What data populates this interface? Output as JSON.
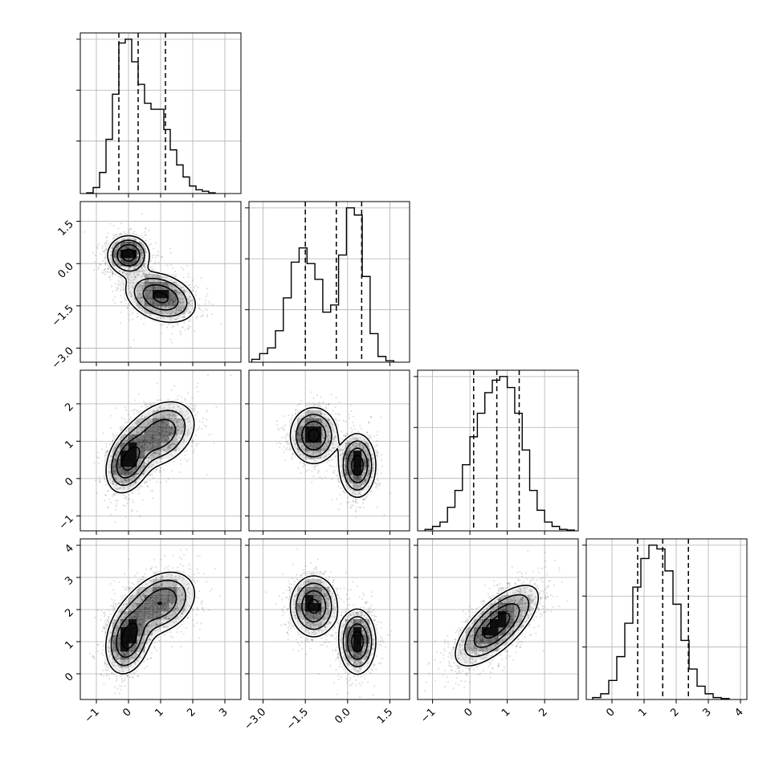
{
  "chart_data": {
    "type": "corner",
    "n_params": 4,
    "grid": true,
    "params": [
      {
        "range": [
          -1.5,
          3.5
        ],
        "ticks": [
          -1,
          0,
          1,
          2,
          3
        ],
        "tick_labels": [
          "−1",
          "0",
          "1",
          "2",
          "3"
        ]
      },
      {
        "range": [
          -3.5,
          2.2
        ],
        "ticks": [
          -3.0,
          -1.5,
          0.0,
          1.5
        ],
        "tick_labels": [
          "−3.0",
          "−1.5",
          "0.0",
          "1.5"
        ]
      },
      {
        "range": [
          -1.4,
          2.9
        ],
        "ticks": [
          -1,
          0,
          1,
          2
        ],
        "tick_labels": [
          "−1",
          "0",
          "1",
          "2"
        ]
      },
      {
        "range": [
          -0.8,
          4.2
        ],
        "ticks": [
          0,
          1,
          2,
          3,
          4
        ],
        "tick_labels": [
          "0",
          "1",
          "2",
          "3",
          "4"
        ]
      }
    ],
    "histograms": [
      {
        "bin_start": -1.3,
        "bin_width": 0.2,
        "counts": [
          1,
          8,
          28,
          72,
          132,
          200,
          205,
          175,
          145,
          120,
          112,
          112,
          85,
          58,
          38,
          22,
          10,
          5,
          3,
          1
        ],
        "quantiles": [
          -0.3,
          0.3,
          1.15
        ]
      },
      {
        "bin_start": -3.4,
        "bin_width": 0.28,
        "counts": [
          2,
          6,
          10,
          22,
          45,
          70,
          80,
          69,
          58,
          35,
          40,
          75,
          108,
          103,
          60,
          20,
          4,
          1
        ],
        "quantiles": [
          -1.5,
          -0.4,
          0.5
        ]
      },
      {
        "bin_start": -1.2,
        "bin_width": 0.2,
        "counts": [
          2,
          6,
          12,
          32,
          55,
          90,
          128,
          160,
          188,
          205,
          210,
          195,
          160,
          110,
          55,
          28,
          12,
          6,
          2,
          1
        ],
        "quantiles": [
          0.1,
          0.72,
          1.32
        ]
      },
      {
        "bin_start": -0.6,
        "bin_width": 0.25,
        "counts": [
          2,
          6,
          20,
          45,
          80,
          118,
          148,
          162,
          158,
          135,
          100,
          62,
          32,
          14,
          6,
          2,
          1
        ],
        "quantiles": [
          0.8,
          1.58,
          2.38
        ]
      }
    ],
    "pairs": [
      {
        "x": 0,
        "y": 1,
        "modes": [
          {
            "cx": 0.0,
            "cy": 0.3,
            "sx": 0.32,
            "sy": 0.34,
            "rho": 0.0,
            "w": 1.0
          },
          {
            "cx": 1.0,
            "cy": -1.2,
            "sx": 0.55,
            "sy": 0.45,
            "rho": -0.3,
            "w": 0.9
          }
        ]
      },
      {
        "x": 0,
        "y": 2,
        "modes": [
          {
            "cx": 0.0,
            "cy": 0.45,
            "sx": 0.35,
            "sy": 0.42,
            "rho": 0.3,
            "w": 1.0
          },
          {
            "cx": 1.0,
            "cy": 1.2,
            "sx": 0.55,
            "sy": 0.45,
            "rho": 0.3,
            "w": 0.85
          }
        ]
      },
      {
        "x": 0,
        "y": 3,
        "modes": [
          {
            "cx": 0.0,
            "cy": 1.1,
            "sx": 0.35,
            "sy": 0.55,
            "rho": 0.25,
            "w": 1.0
          },
          {
            "cx": 1.0,
            "cy": 2.2,
            "sx": 0.55,
            "sy": 0.5,
            "rho": 0.3,
            "w": 0.85
          }
        ]
      },
      {
        "x": 1,
        "y": 2,
        "modes": [
          {
            "cx": -1.2,
            "cy": 1.15,
            "sx": 0.42,
            "sy": 0.38,
            "rho": 0.0,
            "w": 0.9
          },
          {
            "cx": 0.35,
            "cy": 0.35,
            "sx": 0.32,
            "sy": 0.42,
            "rho": 0.0,
            "w": 1.0
          }
        ]
      },
      {
        "x": 1,
        "y": 3,
        "modes": [
          {
            "cx": -1.2,
            "cy": 2.1,
            "sx": 0.42,
            "sy": 0.48,
            "rho": 0.0,
            "w": 0.9
          },
          {
            "cx": 0.35,
            "cy": 1.0,
            "sx": 0.32,
            "sy": 0.5,
            "rho": 0.0,
            "w": 1.0
          }
        ]
      },
      {
        "x": 2,
        "y": 3,
        "modes": [
          {
            "cx": 0.72,
            "cy": 1.5,
            "sx": 0.55,
            "sy": 0.62,
            "rho": 0.7,
            "w": 1.0
          }
        ]
      }
    ]
  }
}
